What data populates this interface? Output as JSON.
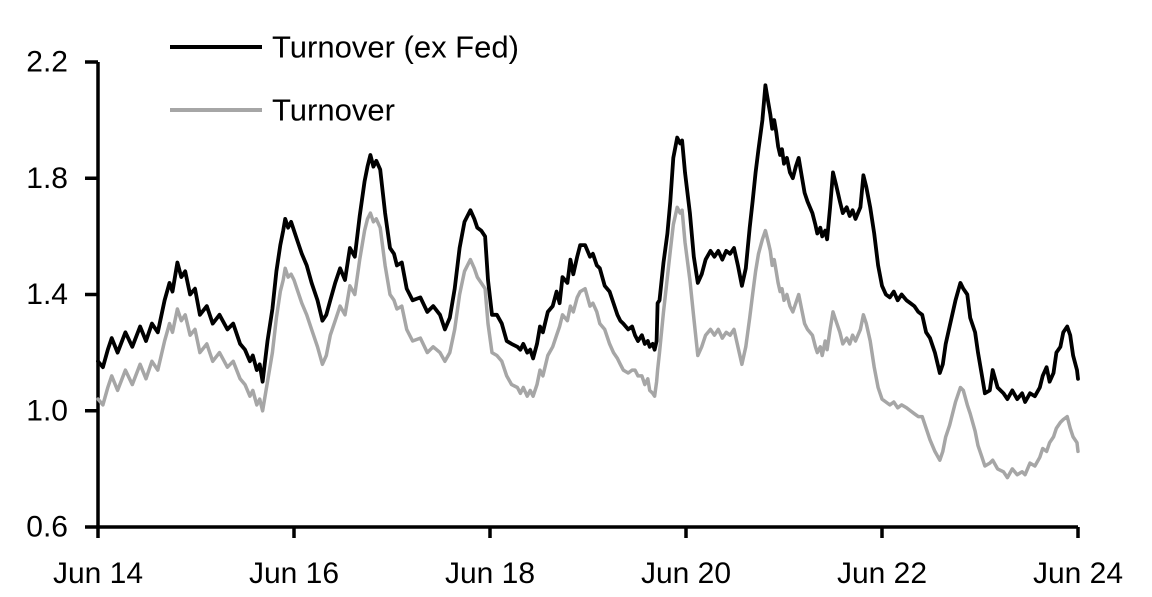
{
  "page": {
    "background": "#ffffff"
  },
  "colors": {
    "series_black": "#000000",
    "series_gray": "#a6a6a6",
    "axis": "#000000",
    "background": "#ffffff"
  },
  "legend": {
    "position": "top-left",
    "items": [
      {
        "label": "Turnover (ex Fed)",
        "color": "#000000"
      },
      {
        "label": "Turnover",
        "color": "#a6a6a6"
      }
    ]
  },
  "chart_data": {
    "type": "line",
    "title": "",
    "xlabel": "",
    "ylabel": "",
    "grid": false,
    "legend_position": "top-left",
    "xlim": [
      0,
      10
    ],
    "ylim": [
      0.6,
      2.2
    ],
    "x_axis": {
      "ticks": [
        {
          "pos": 0,
          "label": "Jun 14"
        },
        {
          "pos": 2,
          "label": "Jun 16"
        },
        {
          "pos": 4,
          "label": "Jun 18"
        },
        {
          "pos": 6,
          "label": "Jun 20"
        },
        {
          "pos": 8,
          "label": "Jun 22"
        },
        {
          "pos": 10,
          "label": "Jun 24"
        }
      ]
    },
    "y_axis": {
      "ticks": [
        {
          "value": 2.2,
          "label": "2.2"
        },
        {
          "value": 1.8,
          "label": "1.8"
        },
        {
          "value": 1.4,
          "label": "1.4"
        },
        {
          "value": 1.0,
          "label": "1.0"
        },
        {
          "value": 0.6,
          "label": "0.6"
        }
      ]
    },
    "x_unit": "years since Jun 2014",
    "x": [
      0.0,
      0.05,
      0.1,
      0.14,
      0.2,
      0.28,
      0.35,
      0.43,
      0.49,
      0.55,
      0.61,
      0.68,
      0.73,
      0.76,
      0.81,
      0.85,
      0.89,
      0.94,
      0.99,
      1.04,
      1.11,
      1.17,
      1.24,
      1.32,
      1.38,
      1.45,
      1.5,
      1.55,
      1.58,
      1.62,
      1.65,
      1.68,
      1.73,
      1.78,
      1.82,
      1.86,
      1.89,
      1.91,
      1.94,
      1.97,
      2.0,
      2.03,
      2.08,
      2.13,
      2.18,
      2.24,
      2.29,
      2.33,
      2.37,
      2.42,
      2.47,
      2.52,
      2.57,
      2.62,
      2.67,
      2.72,
      2.75,
      2.78,
      2.81,
      2.84,
      2.88,
      2.93,
      2.98,
      3.02,
      3.05,
      3.1,
      3.15,
      3.21,
      3.29,
      3.36,
      3.42,
      3.49,
      3.54,
      3.59,
      3.64,
      3.69,
      3.74,
      3.8,
      3.84,
      3.87,
      3.91,
      3.95,
      3.98,
      4.02,
      4.07,
      4.12,
      4.17,
      4.22,
      4.28,
      4.31,
      4.34,
      4.38,
      4.41,
      4.44,
      4.48,
      4.51,
      4.54,
      4.59,
      4.64,
      4.68,
      4.71,
      4.74,
      4.79,
      4.82,
      4.85,
      4.89,
      4.92,
      4.97,
      5.02,
      5.05,
      5.09,
      5.12,
      5.17,
      5.22,
      5.26,
      5.3,
      5.33,
      5.36,
      5.41,
      5.45,
      5.48,
      5.51,
      5.55,
      5.58,
      5.61,
      5.63,
      5.66,
      5.68,
      5.7,
      5.71,
      5.73,
      5.77,
      5.81,
      5.84,
      5.87,
      5.91,
      5.94,
      5.96,
      5.99,
      6.04,
      6.08,
      6.12,
      6.16,
      6.2,
      6.25,
      6.29,
      6.33,
      6.37,
      6.41,
      6.45,
      6.49,
      6.53,
      6.57,
      6.61,
      6.65,
      6.68,
      6.71,
      6.74,
      6.78,
      6.81,
      6.84,
      6.86,
      6.88,
      6.9,
      6.92,
      6.94,
      6.96,
      6.98,
      7.0,
      7.03,
      7.06,
      7.09,
      7.12,
      7.15,
      7.18,
      7.21,
      7.24,
      7.29,
      7.32,
      7.34,
      7.37,
      7.39,
      7.42,
      7.44,
      7.47,
      7.5,
      7.53,
      7.57,
      7.6,
      7.64,
      7.67,
      7.7,
      7.73,
      7.78,
      7.81,
      7.84,
      7.88,
      7.92,
      7.96,
      8.0,
      8.04,
      8.08,
      8.12,
      8.16,
      8.2,
      8.25,
      8.29,
      8.33,
      8.37,
      8.41,
      8.45,
      8.49,
      8.54,
      8.59,
      8.62,
      8.65,
      8.69,
      8.75,
      8.8,
      8.83,
      8.87,
      8.9,
      8.95,
      8.98,
      9.02,
      9.05,
      9.1,
      9.13,
      9.18,
      9.24,
      9.28,
      9.33,
      9.38,
      9.43,
      9.46,
      9.51,
      9.56,
      9.61,
      9.64,
      9.68,
      9.71,
      9.75,
      9.78,
      9.82,
      9.85,
      9.89,
      9.92,
      9.95,
      9.99,
      10.0
    ],
    "series": [
      {
        "name": "Turnover (ex Fed)",
        "color": "#000000",
        "values": [
          1.17,
          1.15,
          1.21,
          1.25,
          1.2,
          1.27,
          1.22,
          1.29,
          1.24,
          1.3,
          1.27,
          1.38,
          1.44,
          1.41,
          1.51,
          1.46,
          1.48,
          1.4,
          1.42,
          1.33,
          1.36,
          1.3,
          1.33,
          1.28,
          1.3,
          1.23,
          1.21,
          1.17,
          1.19,
          1.14,
          1.16,
          1.1,
          1.24,
          1.35,
          1.48,
          1.57,
          1.62,
          1.66,
          1.63,
          1.65,
          1.62,
          1.59,
          1.54,
          1.5,
          1.44,
          1.38,
          1.31,
          1.33,
          1.38,
          1.44,
          1.49,
          1.45,
          1.56,
          1.53,
          1.67,
          1.79,
          1.84,
          1.88,
          1.84,
          1.86,
          1.83,
          1.68,
          1.56,
          1.54,
          1.5,
          1.51,
          1.42,
          1.38,
          1.39,
          1.34,
          1.36,
          1.33,
          1.28,
          1.32,
          1.42,
          1.56,
          1.65,
          1.69,
          1.66,
          1.63,
          1.62,
          1.6,
          1.45,
          1.33,
          1.33,
          1.3,
          1.24,
          1.23,
          1.22,
          1.21,
          1.23,
          1.2,
          1.21,
          1.18,
          1.23,
          1.29,
          1.27,
          1.34,
          1.36,
          1.41,
          1.37,
          1.46,
          1.44,
          1.52,
          1.47,
          1.53,
          1.57,
          1.57,
          1.53,
          1.54,
          1.5,
          1.49,
          1.43,
          1.41,
          1.37,
          1.33,
          1.31,
          1.3,
          1.28,
          1.29,
          1.26,
          1.24,
          1.26,
          1.23,
          1.24,
          1.22,
          1.23,
          1.21,
          1.24,
          1.37,
          1.38,
          1.51,
          1.61,
          1.72,
          1.87,
          1.94,
          1.92,
          1.93,
          1.82,
          1.68,
          1.53,
          1.44,
          1.47,
          1.52,
          1.55,
          1.53,
          1.55,
          1.52,
          1.55,
          1.54,
          1.56,
          1.5,
          1.43,
          1.49,
          1.63,
          1.72,
          1.82,
          1.9,
          2.0,
          2.12,
          2.06,
          2.02,
          1.97,
          2.0,
          1.96,
          1.91,
          1.88,
          1.9,
          1.85,
          1.87,
          1.82,
          1.8,
          1.84,
          1.87,
          1.81,
          1.75,
          1.72,
          1.68,
          1.64,
          1.61,
          1.63,
          1.6,
          1.62,
          1.59,
          1.7,
          1.82,
          1.78,
          1.72,
          1.68,
          1.7,
          1.67,
          1.69,
          1.66,
          1.7,
          1.81,
          1.77,
          1.7,
          1.61,
          1.5,
          1.43,
          1.4,
          1.39,
          1.41,
          1.38,
          1.4,
          1.38,
          1.37,
          1.36,
          1.34,
          1.33,
          1.27,
          1.25,
          1.2,
          1.13,
          1.16,
          1.23,
          1.29,
          1.38,
          1.44,
          1.42,
          1.4,
          1.32,
          1.27,
          1.2,
          1.12,
          1.06,
          1.07,
          1.14,
          1.08,
          1.06,
          1.04,
          1.07,
          1.04,
          1.06,
          1.03,
          1.06,
          1.05,
          1.08,
          1.12,
          1.15,
          1.1,
          1.13,
          1.2,
          1.22,
          1.27,
          1.29,
          1.26,
          1.19,
          1.14,
          1.11
        ]
      },
      {
        "name": "Turnover",
        "color": "#a6a6a6",
        "values": [
          1.04,
          1.02,
          1.08,
          1.12,
          1.07,
          1.14,
          1.09,
          1.16,
          1.11,
          1.17,
          1.14,
          1.24,
          1.3,
          1.27,
          1.35,
          1.31,
          1.33,
          1.26,
          1.28,
          1.2,
          1.23,
          1.17,
          1.2,
          1.15,
          1.17,
          1.11,
          1.09,
          1.05,
          1.07,
          1.02,
          1.04,
          1.0,
          1.1,
          1.2,
          1.32,
          1.41,
          1.45,
          1.49,
          1.46,
          1.47,
          1.45,
          1.42,
          1.37,
          1.33,
          1.28,
          1.22,
          1.16,
          1.19,
          1.26,
          1.31,
          1.36,
          1.33,
          1.43,
          1.4,
          1.52,
          1.62,
          1.66,
          1.68,
          1.65,
          1.66,
          1.63,
          1.5,
          1.4,
          1.38,
          1.35,
          1.36,
          1.28,
          1.24,
          1.25,
          1.2,
          1.22,
          1.2,
          1.17,
          1.2,
          1.28,
          1.4,
          1.48,
          1.52,
          1.49,
          1.46,
          1.44,
          1.42,
          1.3,
          1.2,
          1.19,
          1.17,
          1.12,
          1.09,
          1.08,
          1.06,
          1.08,
          1.05,
          1.07,
          1.05,
          1.09,
          1.14,
          1.12,
          1.19,
          1.22,
          1.26,
          1.29,
          1.33,
          1.31,
          1.36,
          1.34,
          1.39,
          1.41,
          1.42,
          1.36,
          1.37,
          1.34,
          1.3,
          1.28,
          1.23,
          1.2,
          1.18,
          1.16,
          1.14,
          1.13,
          1.14,
          1.14,
          1.12,
          1.12,
          1.09,
          1.11,
          1.07,
          1.06,
          1.05,
          1.1,
          1.14,
          1.2,
          1.34,
          1.46,
          1.55,
          1.64,
          1.7,
          1.68,
          1.69,
          1.58,
          1.45,
          1.32,
          1.19,
          1.22,
          1.26,
          1.28,
          1.26,
          1.28,
          1.25,
          1.27,
          1.26,
          1.28,
          1.22,
          1.16,
          1.22,
          1.32,
          1.4,
          1.48,
          1.54,
          1.59,
          1.62,
          1.58,
          1.55,
          1.5,
          1.52,
          1.48,
          1.44,
          1.41,
          1.42,
          1.38,
          1.4,
          1.36,
          1.34,
          1.37,
          1.4,
          1.35,
          1.3,
          1.28,
          1.26,
          1.22,
          1.2,
          1.22,
          1.19,
          1.24,
          1.21,
          1.28,
          1.34,
          1.31,
          1.27,
          1.23,
          1.25,
          1.23,
          1.26,
          1.24,
          1.28,
          1.33,
          1.3,
          1.24,
          1.15,
          1.08,
          1.04,
          1.03,
          1.02,
          1.03,
          1.01,
          1.02,
          1.01,
          1.0,
          0.99,
          0.98,
          0.98,
          0.94,
          0.9,
          0.86,
          0.83,
          0.86,
          0.91,
          0.95,
          1.03,
          1.08,
          1.07,
          1.02,
          0.99,
          0.93,
          0.88,
          0.84,
          0.81,
          0.82,
          0.83,
          0.8,
          0.79,
          0.77,
          0.8,
          0.78,
          0.79,
          0.78,
          0.82,
          0.81,
          0.84,
          0.87,
          0.86,
          0.89,
          0.91,
          0.94,
          0.96,
          0.97,
          0.98,
          0.94,
          0.91,
          0.89,
          0.86
        ]
      }
    ]
  }
}
